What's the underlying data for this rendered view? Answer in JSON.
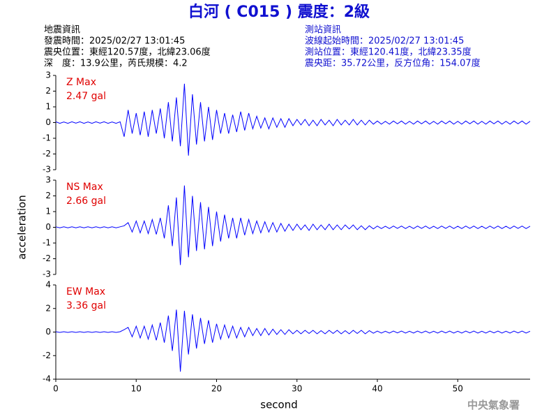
{
  "header": {
    "title": "白河 ( C015 ) 震度：2級",
    "quake_info": [
      "地震資訊",
      "發震時間：2025/02/27 13:01:45",
      "震央位置：東經120.57度，北緯23.06度",
      "深　度：13.9公里，芮氏規模：4.2"
    ],
    "station_info": [
      "測站資訊",
      "波線起始時間：2025/02/27 13:01:45",
      "測站位置：東經120.41度，北緯23.35度",
      "震央距：35.72公里，反方位角：154.07度"
    ],
    "agency": "中央氣象署"
  },
  "chart_data": [
    {
      "type": "line",
      "color": "#0000ff",
      "annotations": [
        "Z Max",
        "2.47 gal"
      ],
      "annotation_color": "#e00000",
      "x": [
        0,
        0.5,
        1,
        1.5,
        2,
        2.5,
        3,
        3.5,
        4,
        4.5,
        5,
        5.5,
        6,
        6.5,
        7,
        7.5,
        8,
        8.5,
        9,
        9.5,
        10,
        10.5,
        11,
        11.5,
        12,
        12.5,
        13,
        13.5,
        14,
        14.5,
        15,
        15.5,
        16,
        16.5,
        17,
        17.5,
        18,
        18.5,
        19,
        19.5,
        20,
        20.5,
        21,
        21.5,
        22,
        22.5,
        23,
        23.5,
        24,
        24.5,
        25,
        25.5,
        26,
        26.5,
        27,
        27.5,
        28,
        28.5,
        29,
        29.5,
        30,
        30.5,
        31,
        31.5,
        32,
        32.5,
        33,
        33.5,
        34,
        34.5,
        35,
        35.5,
        36,
        36.5,
        37,
        37.5,
        38,
        38.5,
        39,
        39.5,
        40,
        40.5,
        41,
        41.5,
        42,
        42.5,
        43,
        43.5,
        44,
        44.5,
        45,
        45.5,
        46,
        46.5,
        47,
        47.5,
        48,
        48.5,
        49,
        49.5,
        50,
        50.5,
        51,
        51.5,
        52,
        52.5,
        53,
        53.5,
        54,
        54.5,
        55,
        55.5,
        56,
        56.5,
        57,
        57.5,
        58,
        58.5,
        59
      ],
      "values": [
        0.05,
        -0.05,
        0.04,
        -0.05,
        0.05,
        -0.04,
        0.05,
        -0.05,
        0.04,
        -0.05,
        0.05,
        -0.04,
        0.05,
        -0.05,
        0.04,
        -0.05,
        0.05,
        -0.9,
        0.8,
        -0.7,
        0.6,
        -0.8,
        0.7,
        -0.9,
        0.8,
        -0.7,
        0.9,
        -1.0,
        1.3,
        -1.2,
        1.6,
        -1.5,
        2.47,
        -2.1,
        1.8,
        -1.4,
        1.3,
        -1.2,
        1.0,
        -1.1,
        0.8,
        -0.7,
        0.6,
        -0.7,
        0.5,
        -0.6,
        0.7,
        -0.5,
        0.6,
        -0.4,
        0.4,
        -0.35,
        0.3,
        -0.4,
        0.3,
        -0.3,
        0.25,
        -0.3,
        0.25,
        -0.2,
        0.2,
        -0.15,
        0.2,
        -0.2,
        0.15,
        -0.2,
        0.2,
        -0.15,
        0.15,
        -0.2,
        0.2,
        -0.15,
        0.15,
        -0.15,
        0.2,
        -0.15,
        0.15,
        -0.15,
        0.15,
        -0.1,
        0.1,
        -0.1,
        0.08,
        -0.1,
        0.1,
        -0.08,
        0.1,
        -0.1,
        0.08,
        -0.1,
        0.1,
        -0.08,
        0.1,
        -0.1,
        0.08,
        -0.1,
        0.1,
        -0.08,
        0.1,
        -0.1,
        0.08,
        -0.1,
        0.1,
        -0.08,
        0.1,
        -0.1,
        0.08,
        -0.1,
        0.1,
        -0.08,
        0.1,
        -0.1,
        0.08,
        -0.1,
        0.1,
        -0.08,
        0.1,
        -0.1,
        0.08
      ],
      "xlim": [
        0,
        59
      ],
      "ylim": [
        -3,
        3
      ],
      "yticks": [
        -3,
        -2,
        -1,
        0,
        1,
        2,
        3
      ]
    },
    {
      "type": "line",
      "color": "#0000ff",
      "annotations": [
        "NS Max",
        "2.66 gal"
      ],
      "annotation_color": "#e00000",
      "ylabel": "acceleration",
      "x": [
        0,
        0.5,
        1,
        1.5,
        2,
        2.5,
        3,
        3.5,
        4,
        4.5,
        5,
        5.5,
        6,
        6.5,
        7,
        7.5,
        8,
        8.5,
        9,
        9.5,
        10,
        10.5,
        11,
        11.5,
        12,
        12.5,
        13,
        13.5,
        14,
        14.5,
        15,
        15.5,
        16,
        16.5,
        17,
        17.5,
        18,
        18.5,
        19,
        19.5,
        20,
        20.5,
        21,
        21.5,
        22,
        22.5,
        23,
        23.5,
        24,
        24.5,
        25,
        25.5,
        26,
        26.5,
        27,
        27.5,
        28,
        28.5,
        29,
        29.5,
        30,
        30.5,
        31,
        31.5,
        32,
        32.5,
        33,
        33.5,
        34,
        34.5,
        35,
        35.5,
        36,
        36.5,
        37,
        37.5,
        38,
        38.5,
        39,
        39.5,
        40,
        40.5,
        41,
        41.5,
        42,
        42.5,
        43,
        43.5,
        44,
        44.5,
        45,
        45.5,
        46,
        46.5,
        47,
        47.5,
        48,
        48.5,
        49,
        49.5,
        50,
        50.5,
        51,
        51.5,
        52,
        52.5,
        53,
        53.5,
        54,
        54.5,
        55,
        55.5,
        56,
        56.5,
        57,
        57.5,
        58,
        58.5,
        59
      ],
      "values": [
        0.03,
        -0.03,
        0.03,
        -0.03,
        0.03,
        -0.03,
        0.03,
        -0.03,
        0.03,
        -0.03,
        0.03,
        -0.03,
        0.03,
        -0.03,
        0.03,
        -0.03,
        0.03,
        0.1,
        0.3,
        -0.3,
        0.4,
        -0.35,
        0.4,
        -0.4,
        0.5,
        -0.45,
        0.6,
        -0.7,
        1.4,
        -1.2,
        1.9,
        -2.4,
        2.66,
        -1.9,
        2.0,
        -1.5,
        1.6,
        -1.4,
        1.3,
        -1.2,
        1.0,
        -0.9,
        0.8,
        -0.7,
        0.6,
        -0.7,
        0.6,
        -0.5,
        0.5,
        -0.4,
        0.4,
        -0.35,
        0.35,
        -0.3,
        0.3,
        -0.3,
        0.25,
        -0.25,
        0.2,
        -0.2,
        0.2,
        -0.15,
        0.15,
        -0.2,
        0.2,
        -0.15,
        0.15,
        -0.15,
        0.2,
        -0.15,
        0.15,
        -0.15,
        0.15,
        -0.1,
        0.15,
        -0.15,
        0.1,
        -0.15,
        0.1,
        -0.1,
        0.08,
        -0.08,
        0.07,
        -0.08,
        0.08,
        -0.07,
        0.08,
        -0.08,
        0.07,
        -0.08,
        0.08,
        -0.07,
        0.08,
        -0.08,
        0.07,
        -0.08,
        0.08,
        -0.07,
        0.08,
        -0.08,
        0.07,
        -0.08,
        0.08,
        -0.07,
        0.08,
        -0.08,
        0.07,
        -0.08,
        0.08,
        -0.07,
        0.08,
        -0.08,
        0.07,
        -0.08,
        0.08,
        -0.07,
        0.08,
        -0.08,
        0.07
      ],
      "xlim": [
        0,
        59
      ],
      "ylim": [
        -3,
        3
      ],
      "yticks": [
        -3,
        -2,
        -1,
        0,
        1,
        2,
        3
      ]
    },
    {
      "type": "line",
      "color": "#0000ff",
      "annotations": [
        "EW Max",
        "3.36 gal"
      ],
      "annotation_color": "#e00000",
      "xlabel": "second",
      "x": [
        0,
        0.5,
        1,
        1.5,
        2,
        2.5,
        3,
        3.5,
        4,
        4.5,
        5,
        5.5,
        6,
        6.5,
        7,
        7.5,
        8,
        8.5,
        9,
        9.5,
        10,
        10.5,
        11,
        11.5,
        12,
        12.5,
        13,
        13.5,
        14,
        14.5,
        15,
        15.5,
        16,
        16.5,
        17,
        17.5,
        18,
        18.5,
        19,
        19.5,
        20,
        20.5,
        21,
        21.5,
        22,
        22.5,
        23,
        23.5,
        24,
        24.5,
        25,
        25.5,
        26,
        26.5,
        27,
        27.5,
        28,
        28.5,
        29,
        29.5,
        30,
        30.5,
        31,
        31.5,
        32,
        32.5,
        33,
        33.5,
        34,
        34.5,
        35,
        35.5,
        36,
        36.5,
        37,
        37.5,
        38,
        38.5,
        39,
        39.5,
        40,
        40.5,
        41,
        41.5,
        42,
        42.5,
        43,
        43.5,
        44,
        44.5,
        45,
        45.5,
        46,
        46.5,
        47,
        47.5,
        48,
        48.5,
        49,
        49.5,
        50,
        50.5,
        51,
        51.5,
        52,
        52.5,
        53,
        53.5,
        54,
        54.5,
        55,
        55.5,
        56,
        56.5,
        57,
        57.5,
        58,
        58.5,
        59
      ],
      "values": [
        0.03,
        -0.03,
        0.03,
        -0.03,
        0.03,
        -0.03,
        0.03,
        -0.03,
        0.03,
        -0.03,
        0.03,
        -0.03,
        0.03,
        -0.03,
        0.03,
        -0.03,
        0.03,
        0.2,
        0.4,
        -0.4,
        0.5,
        -0.5,
        0.5,
        -0.6,
        0.6,
        -0.7,
        0.8,
        -0.9,
        1.4,
        -1.6,
        1.9,
        -3.36,
        1.8,
        -1.9,
        1.5,
        -1.4,
        1.2,
        -1.0,
        1.0,
        -0.9,
        0.7,
        -0.6,
        0.6,
        -0.5,
        0.5,
        -0.5,
        0.4,
        -0.4,
        0.4,
        -0.3,
        0.3,
        -0.3,
        0.3,
        -0.25,
        0.25,
        -0.2,
        0.2,
        -0.2,
        0.2,
        -0.15,
        0.15,
        -0.15,
        0.15,
        -0.12,
        0.15,
        -0.15,
        0.12,
        -0.15,
        0.15,
        -0.12,
        0.15,
        -0.15,
        0.12,
        -0.15,
        0.15,
        -0.12,
        0.15,
        -0.15,
        0.12,
        -0.1,
        0.08,
        -0.08,
        0.07,
        -0.08,
        0.08,
        -0.07,
        0.08,
        -0.08,
        0.07,
        -0.08,
        0.08,
        -0.07,
        0.08,
        -0.08,
        0.07,
        -0.08,
        0.08,
        -0.07,
        0.08,
        -0.08,
        0.07,
        -0.08,
        0.08,
        -0.07,
        0.08,
        -0.08,
        0.07,
        -0.08,
        0.08,
        -0.07,
        0.08,
        -0.08,
        0.07,
        -0.08,
        0.08,
        -0.07,
        0.08,
        -0.08,
        0.07
      ],
      "xlim": [
        0,
        59
      ],
      "ylim": [
        -4,
        4
      ],
      "yticks": [
        -4,
        -2,
        0,
        2,
        4
      ],
      "xticks": [
        0,
        10,
        20,
        30,
        40,
        50
      ]
    }
  ]
}
